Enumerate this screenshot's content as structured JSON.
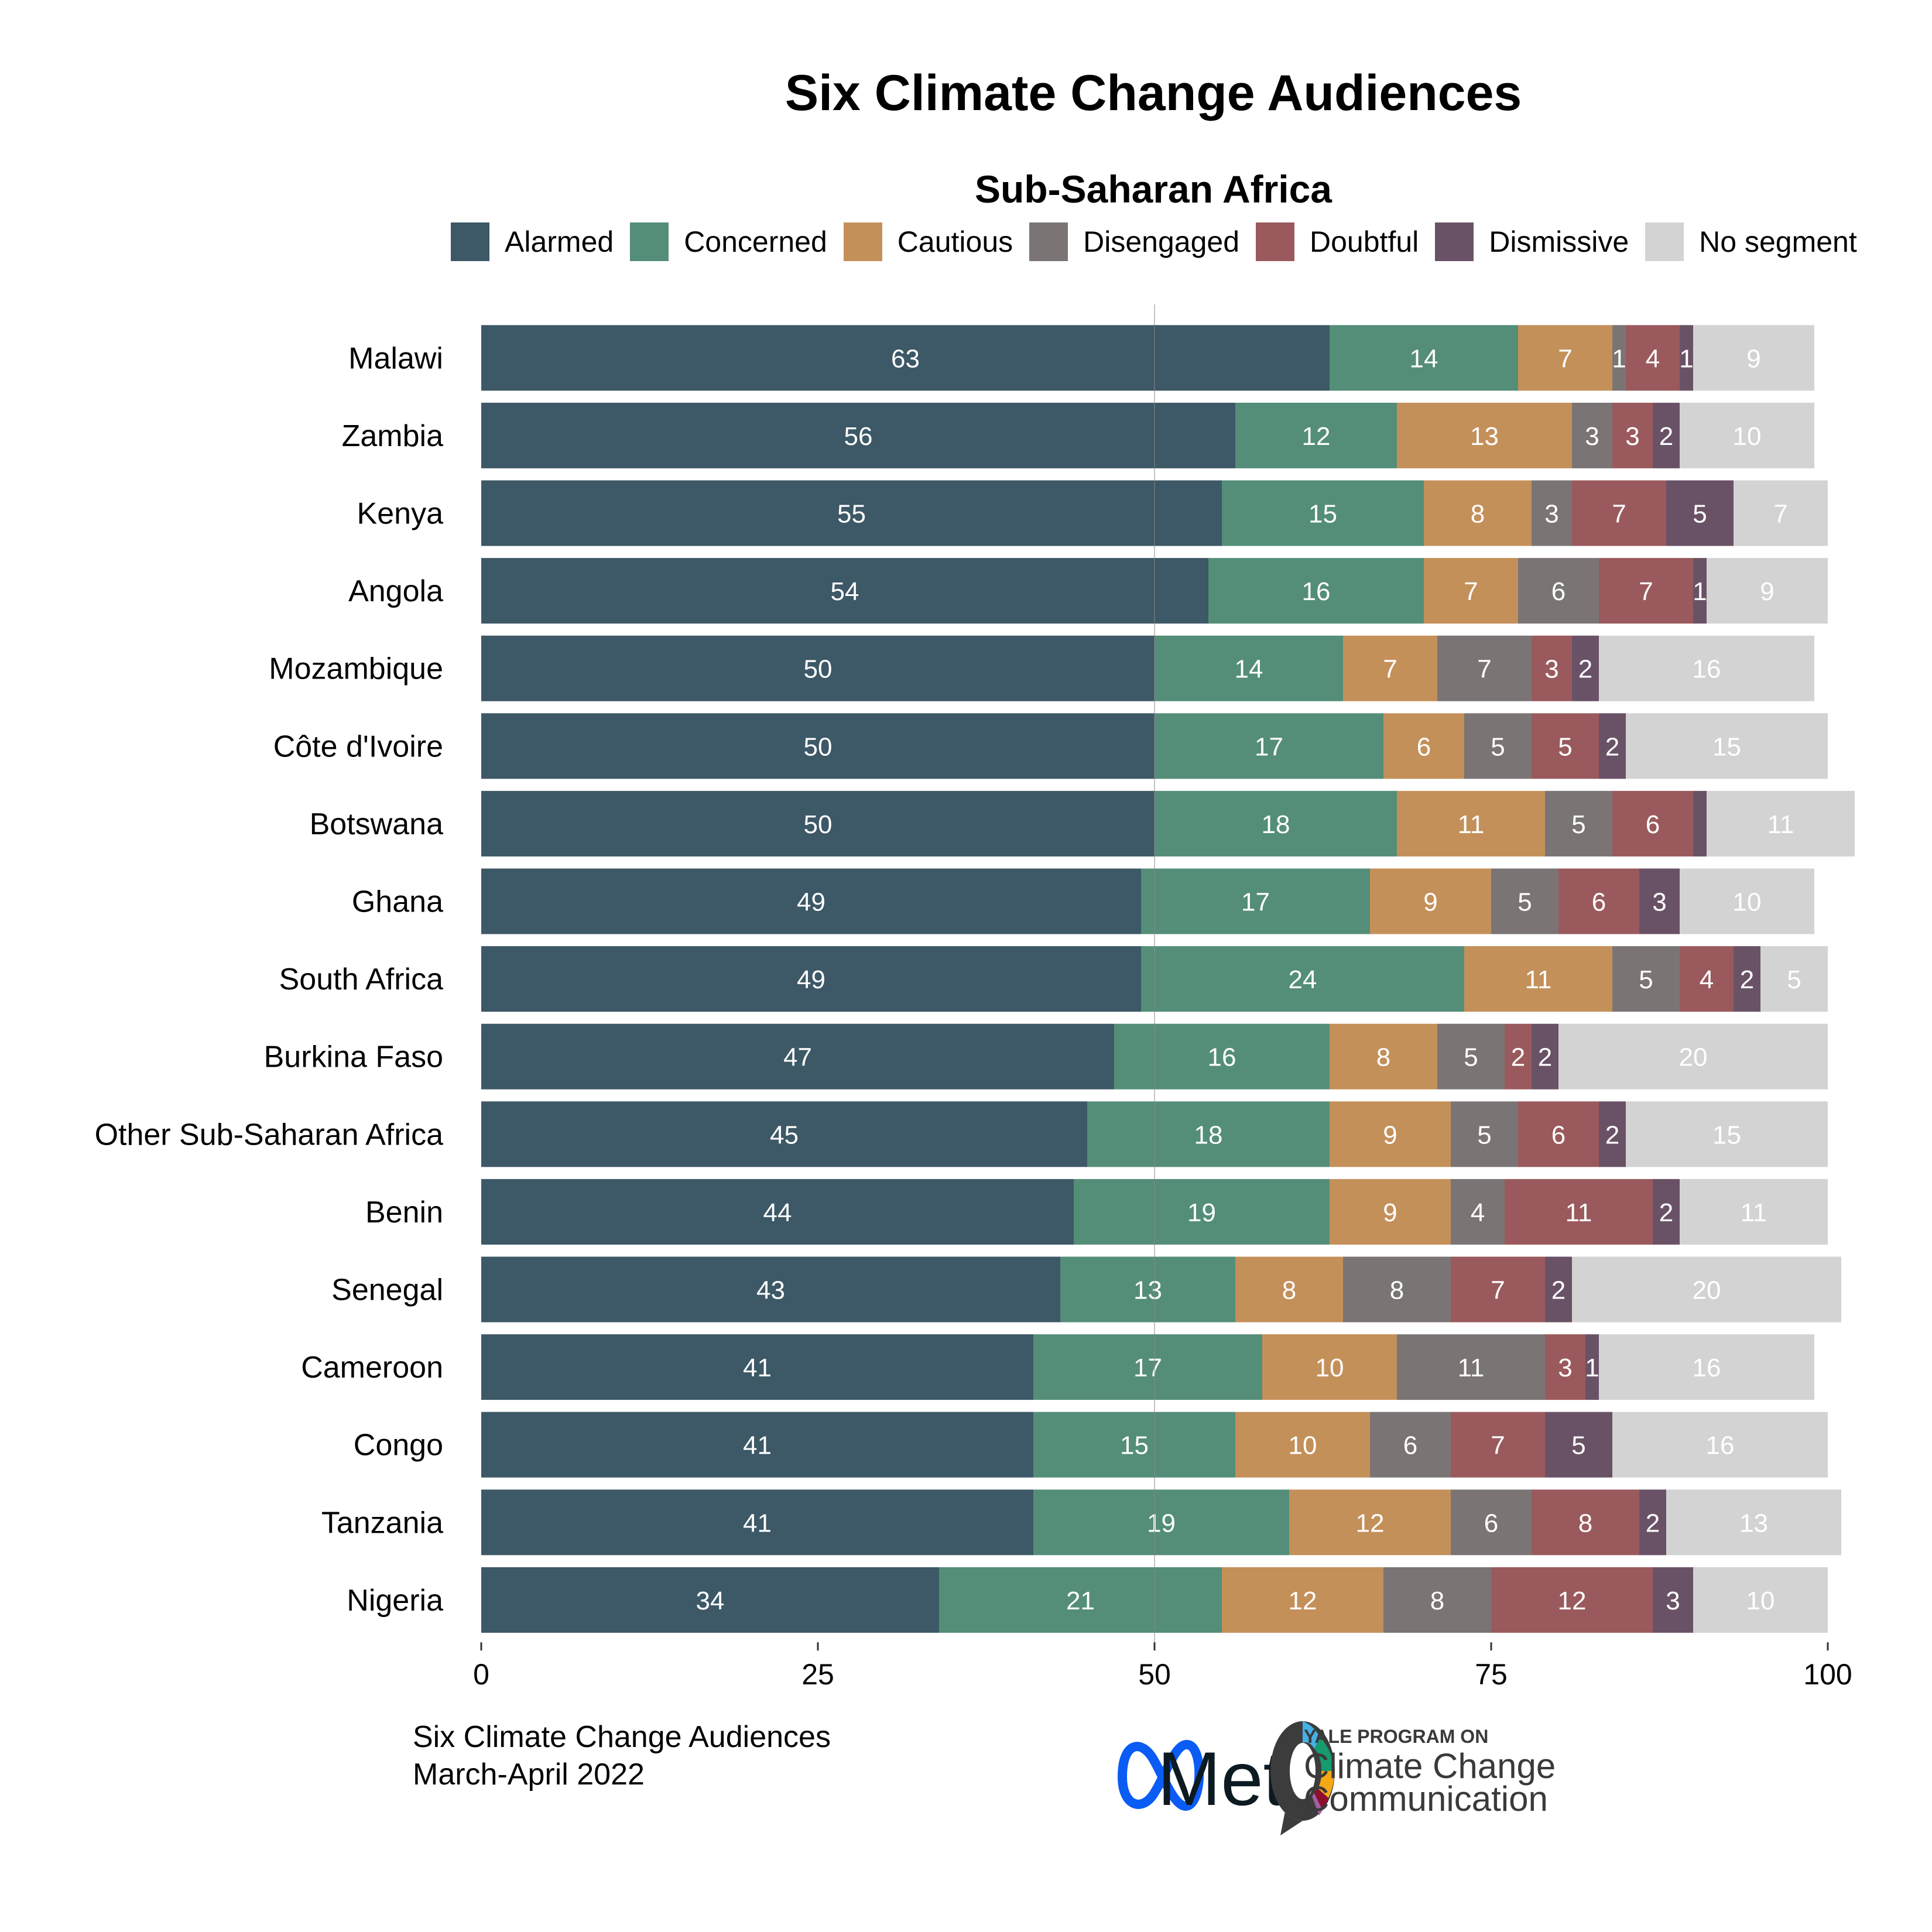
{
  "chart_data": {
    "type": "bar",
    "orientation": "horizontal",
    "stacked": true,
    "title": "Six Climate Change Audiences",
    "subtitle": "Sub-Saharan Africa",
    "xlabel": "",
    "ylabel": "",
    "xlim": [
      0,
      100
    ],
    "xticks": [
      0,
      25,
      50,
      75,
      100
    ],
    "grid": false,
    "reference_line": 50,
    "legend_position": "top",
    "categories": [
      "Malawi",
      "Zambia",
      "Kenya",
      "Angola",
      "Mozambique",
      "Côte d'Ivoire",
      "Botswana",
      "Ghana",
      "South Africa",
      "Burkina Faso",
      "Other Sub-Saharan Africa",
      "Benin",
      "Senegal",
      "Cameroon",
      "Congo",
      "Tanzania",
      "Nigeria"
    ],
    "series": [
      {
        "name": "Alarmed",
        "color": "#3d5866",
        "values": [
          63,
          56,
          55,
          54,
          50,
          50,
          50,
          49,
          49,
          47,
          45,
          44,
          43,
          41,
          41,
          41,
          34
        ]
      },
      {
        "name": "Concerned",
        "color": "#548e78",
        "values": [
          14,
          12,
          15,
          16,
          14,
          17,
          18,
          17,
          24,
          16,
          18,
          19,
          13,
          17,
          15,
          19,
          21
        ]
      },
      {
        "name": "Cautious",
        "color": "#c4905a",
        "values": [
          7,
          13,
          8,
          7,
          7,
          6,
          11,
          9,
          11,
          8,
          9,
          9,
          8,
          10,
          10,
          12,
          12
        ]
      },
      {
        "name": "Disengaged",
        "color": "#7a7574",
        "values": [
          1,
          3,
          3,
          6,
          7,
          5,
          5,
          5,
          5,
          5,
          5,
          4,
          8,
          11,
          6,
          6,
          8
        ]
      },
      {
        "name": "Doubtful",
        "color": "#9a5a5d",
        "values": [
          4,
          3,
          7,
          7,
          3,
          5,
          6,
          6,
          4,
          2,
          6,
          11,
          7,
          3,
          7,
          8,
          12
        ]
      },
      {
        "name": "Dismissive",
        "color": "#6a5266",
        "values": [
          1,
          2,
          5,
          1,
          2,
          2,
          1,
          3,
          2,
          2,
          2,
          2,
          2,
          1,
          5,
          2,
          3
        ]
      },
      {
        "name": "No segment",
        "color": "#d3d3d3",
        "values": [
          9,
          10,
          7,
          9,
          16,
          15,
          11,
          10,
          5,
          20,
          15,
          11,
          20,
          16,
          16,
          13,
          10
        ]
      }
    ],
    "hidden_labels": [
      {
        "category": "Botswana",
        "series": "Dismissive"
      }
    ]
  },
  "footer": {
    "line1": "Six Climate Change Audiences",
    "line2": "March-April  2022"
  },
  "logos": {
    "meta": "Meta",
    "yale_small": "YALE PROGRAM ON",
    "yale_line1": "Climate Change",
    "yale_line2": "Communication"
  }
}
